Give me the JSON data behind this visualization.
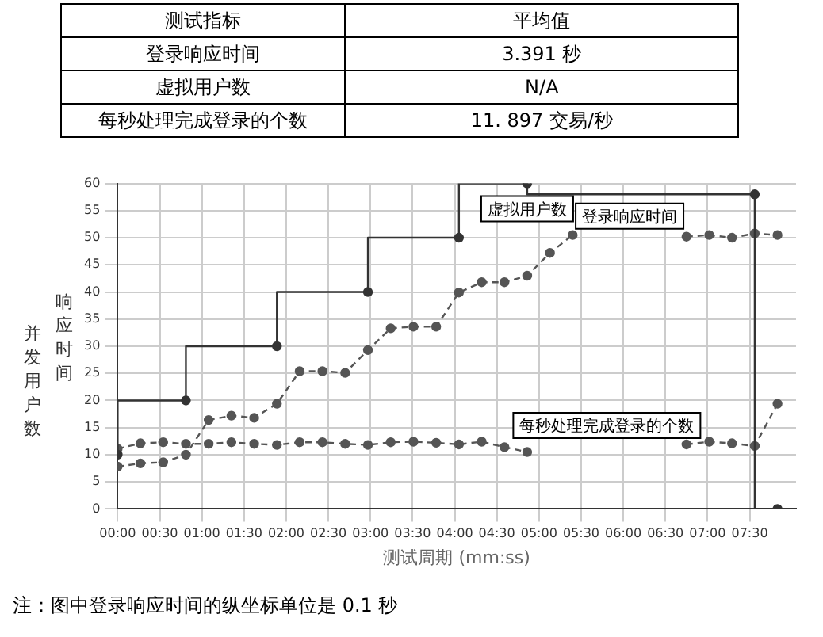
{
  "chart_data": [
    {
      "type": "other",
      "annotations": [
        "测试指标",
        "平均值",
        "登录响应时间",
        "3.391 秒",
        "虚拟用户数",
        "N/A",
        "每秒处理完成登录的个数",
        "11. 897 交易/秒"
      ]
    },
    {
      "type": "line",
      "xlabel": "测试周期 (mm:ss)",
      "ylabel": "并发用户数",
      "annotations": [
        "响应时间",
        "注：图中登录响应时间的纵坐标单位是 0.1 秒"
      ],
      "x": [
        0,
        0.27,
        0.54,
        0.81,
        1.08,
        1.35,
        1.62,
        1.89,
        2.16,
        2.43,
        2.7,
        2.97,
        3.24,
        3.51,
        3.78,
        4.05,
        4.32,
        4.59,
        4.86,
        5.13,
        5.4,
        5.67,
        5.94,
        6.21,
        6.48,
        6.75,
        7.02,
        7.29,
        7.56,
        7.83
      ],
      "series": [
        {
          "name": "虚拟用户数",
          "type": "step",
          "color": "#333333",
          "line_style": "solid",
          "x": [
            0,
            0.81,
            1.89,
            2.97,
            4.05,
            4.86,
            7.56,
            7.83
          ],
          "values": [
            10,
            20,
            30,
            40,
            50,
            60,
            58,
            0
          ]
        },
        {
          "name": "登录响应时间",
          "color": "#555555",
          "line_style": "dashed",
          "values": [
            7.8,
            8.4,
            8.6,
            10,
            16.4,
            17.2,
            16.8,
            19.4,
            25.4,
            25.4,
            25.1,
            29.3,
            33.3,
            33.6,
            33.6,
            39.9,
            41.8,
            41.8,
            43,
            47.2,
            50.5,
            null,
            null,
            null,
            null,
            50.2,
            50.5,
            50,
            50.8,
            50.5
          ]
        },
        {
          "name": "每秒处理完成登录的个数",
          "color": "#555555",
          "line_style": "dashed",
          "values": [
            11.1,
            12.1,
            12.3,
            12,
            12,
            12.3,
            12,
            11.8,
            12.3,
            12.3,
            12,
            11.8,
            12.3,
            12.4,
            12.2,
            11.9,
            12.4,
            11.4,
            10.5,
            null,
            null,
            null,
            null,
            null,
            null,
            11.9,
            12.4,
            12.1,
            11.6,
            19.4
          ]
        }
      ],
      "xlim": [
        0,
        8.05
      ],
      "xticks": [
        {
          "value": 0,
          "label": "00:00"
        },
        {
          "value": 0.5,
          "label": "00:30"
        },
        {
          "value": 1,
          "label": "01:00"
        },
        {
          "value": 1.5,
          "label": "01:30"
        },
        {
          "value": 2,
          "label": "02:00"
        },
        {
          "value": 2.5,
          "label": "02:30"
        },
        {
          "value": 3,
          "label": "03:00"
        },
        {
          "value": 3.5,
          "label": "03:30"
        },
        {
          "value": 4,
          "label": "04:00"
        },
        {
          "value": 4.5,
          "label": "04:30"
        },
        {
          "value": 5,
          "label": "05:00"
        },
        {
          "value": 5.5,
          "label": "05:30"
        },
        {
          "value": 6,
          "label": "06:00"
        },
        {
          "value": 6.5,
          "label": "06:30"
        },
        {
          "value": 7,
          "label": "07:00"
        },
        {
          "value": 7.5,
          "label": "07:30"
        }
      ],
      "ylim": [
        0,
        60
      ],
      "yticks": [
        0,
        5,
        10,
        15,
        20,
        25,
        30,
        35,
        40,
        45,
        50,
        55,
        60
      ],
      "grid": true,
      "marker": "circle"
    }
  ]
}
